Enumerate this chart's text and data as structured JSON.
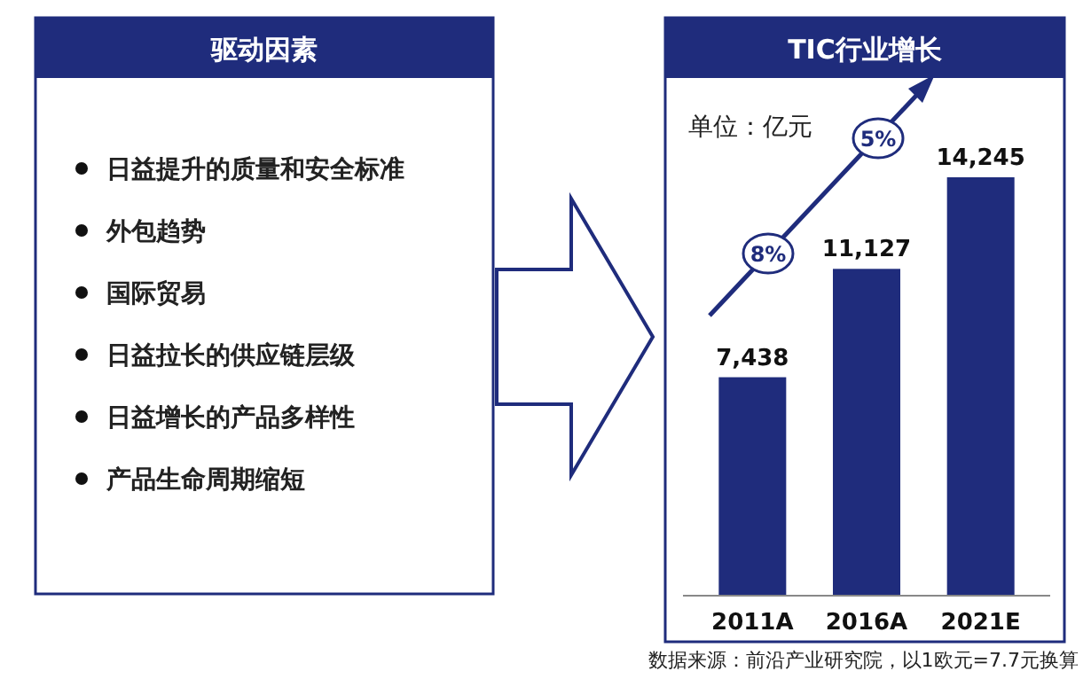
{
  "chart_data": [
    {
      "type": "other",
      "title": "驱动因素",
      "annotations": [
        "日益提升的质量和安全标准",
        "外包趋势",
        "国际贸易",
        "日益拉长的供应链层级",
        "日益增长的产品多样性",
        "产品生命周期缩短"
      ]
    },
    {
      "type": "bar",
      "title": "TIC行业增长",
      "subtitle": "单位：亿元",
      "categories": [
        "2011A",
        "2016A",
        "2021E"
      ],
      "values": [
        7438,
        11127,
        14245
      ],
      "value_labels": [
        "7,438",
        "11,127",
        "14,245"
      ],
      "color": "#1f2c7c",
      "annotations": [
        "8%",
        "5%",
        "数据来源：前沿产业研究院，以1欧元=7.7元换算"
      ]
    }
  ]
}
